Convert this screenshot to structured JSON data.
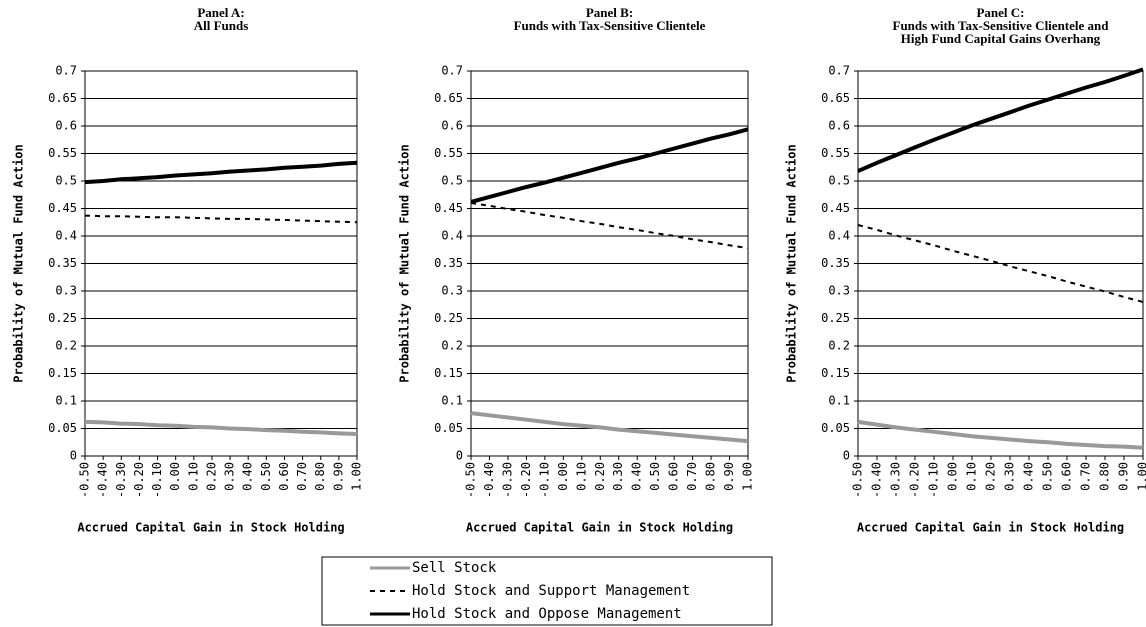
{
  "chart_data": [
    {
      "type": "line",
      "title": [
        "Panel A:",
        "All Funds"
      ],
      "ylabel": "Probability of Mutual Fund Action",
      "xlabel": "Accrued Capital Gain in Stock Holding",
      "categories": [
        "-0.50",
        "-0.40",
        "-0.30",
        "-0.20",
        "-0.10",
        "0.00",
        "0.10",
        "0.20",
        "0.30",
        "0.40",
        "0.50",
        "0.60",
        "0.70",
        "0.80",
        "0.90",
        "1.00"
      ],
      "ylim": [
        0,
        0.7
      ],
      "yticks": [
        0,
        0.05,
        0.1,
        0.15,
        0.2,
        0.25,
        0.3,
        0.35,
        0.4,
        0.45,
        0.5,
        0.55,
        0.6,
        0.65,
        0.7
      ],
      "grid": true,
      "legend": "bottom",
      "series": [
        {
          "name": "Sell Stock",
          "color": "#999999",
          "style": "solid",
          "values": [
            0.062,
            0.061,
            0.059,
            0.058,
            0.056,
            0.055,
            0.053,
            0.052,
            0.05,
            0.049,
            0.047,
            0.046,
            0.044,
            0.043,
            0.041,
            0.04
          ]
        },
        {
          "name": "Hold Stock and Support Management",
          "color": "#000000",
          "style": "dashed",
          "values": [
            0.437,
            0.436,
            0.436,
            0.435,
            0.434,
            0.434,
            0.433,
            0.432,
            0.431,
            0.431,
            0.43,
            0.429,
            0.428,
            0.427,
            0.426,
            0.425
          ]
        },
        {
          "name": "Hold Stock and Oppose Management",
          "color": "#000000",
          "style": "solid",
          "values": [
            0.498,
            0.5,
            0.503,
            0.505,
            0.507,
            0.51,
            0.512,
            0.514,
            0.517,
            0.519,
            0.521,
            0.524,
            0.526,
            0.528,
            0.531,
            0.533
          ]
        }
      ]
    },
    {
      "type": "line",
      "title": [
        "Panel B:",
        "Funds with Tax-Sensitive Clientele"
      ],
      "ylabel": "Probability of Mutual Fund Action",
      "xlabel": "Accrued Capital Gain in Stock Holding",
      "categories": [
        "-0.50",
        "-0.40",
        "-0.30",
        "-0.20",
        "-0.10",
        "0.00",
        "0.10",
        "0.20",
        "0.30",
        "0.40",
        "0.50",
        "0.60",
        "0.70",
        "0.80",
        "0.90",
        "1.00"
      ],
      "ylim": [
        0,
        0.7
      ],
      "yticks": [
        0,
        0.05,
        0.1,
        0.15,
        0.2,
        0.25,
        0.3,
        0.35,
        0.4,
        0.45,
        0.5,
        0.55,
        0.6,
        0.65,
        0.7
      ],
      "grid": true,
      "series": [
        {
          "name": "Sell Stock",
          "color": "#999999",
          "style": "solid",
          "values": [
            0.078,
            0.074,
            0.07,
            0.066,
            0.062,
            0.058,
            0.055,
            0.052,
            0.048,
            0.045,
            0.042,
            0.039,
            0.036,
            0.033,
            0.03,
            0.027
          ]
        },
        {
          "name": "Hold Stock and Support Management",
          "color": "#000000",
          "style": "dashed",
          "values": [
            0.46,
            0.455,
            0.449,
            0.444,
            0.438,
            0.433,
            0.427,
            0.422,
            0.416,
            0.411,
            0.405,
            0.4,
            0.394,
            0.389,
            0.383,
            0.378
          ]
        },
        {
          "name": "Hold Stock and Oppose Management",
          "color": "#000000",
          "style": "solid",
          "values": [
            0.462,
            0.471,
            0.48,
            0.489,
            0.497,
            0.506,
            0.515,
            0.524,
            0.533,
            0.541,
            0.55,
            0.559,
            0.568,
            0.577,
            0.585,
            0.594
          ]
        }
      ]
    },
    {
      "type": "line",
      "title": [
        "Panel C:",
        "Funds with Tax-Sensitive Clientele and",
        "High Fund Capital Gains Overhang"
      ],
      "ylabel": "Probability of Mutual Fund Action",
      "xlabel": "Accrued Capital Gain in Stock Holding",
      "categories": [
        "-0.50",
        "-0.40",
        "-0.30",
        "-0.20",
        "-0.10",
        "0.00",
        "0.10",
        "0.20",
        "0.30",
        "0.40",
        "0.50",
        "0.60",
        "0.70",
        "0.80",
        "0.90",
        "1.00"
      ],
      "ylim": [
        0,
        0.7
      ],
      "yticks": [
        0,
        0.05,
        0.1,
        0.15,
        0.2,
        0.25,
        0.3,
        0.35,
        0.4,
        0.45,
        0.5,
        0.55,
        0.6,
        0.65,
        0.7
      ],
      "grid": true,
      "series": [
        {
          "name": "Sell Stock",
          "color": "#999999",
          "style": "solid",
          "values": [
            0.062,
            0.057,
            0.052,
            0.048,
            0.044,
            0.04,
            0.036,
            0.033,
            0.03,
            0.027,
            0.025,
            0.022,
            0.02,
            0.018,
            0.017,
            0.015
          ]
        },
        {
          "name": "Hold Stock and Support Management",
          "color": "#000000",
          "style": "dashed",
          "values": [
            0.42,
            0.411,
            0.401,
            0.392,
            0.383,
            0.373,
            0.364,
            0.355,
            0.345,
            0.336,
            0.327,
            0.317,
            0.308,
            0.299,
            0.289,
            0.28
          ]
        },
        {
          "name": "Hold Stock and Oppose Management",
          "color": "#000000",
          "style": "solid",
          "values": [
            0.518,
            0.533,
            0.547,
            0.561,
            0.575,
            0.588,
            0.601,
            0.613,
            0.625,
            0.637,
            0.648,
            0.659,
            0.67,
            0.68,
            0.691,
            0.703
          ]
        }
      ]
    }
  ]
}
